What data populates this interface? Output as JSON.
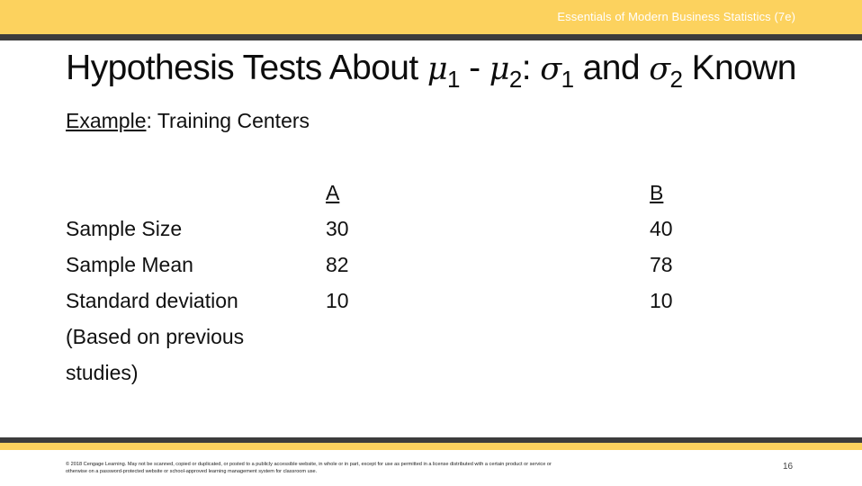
{
  "header": {
    "course_title": "Essentials of Modern Business Statistics (7e)",
    "band_color": "#fcd25e",
    "rule_color": "#3c3c3c"
  },
  "slide": {
    "title_text": "Hypothesis Tests About ",
    "title_mu": "μ",
    "title_sub1": "1",
    "title_minus": " - ",
    "title_sub2": "2",
    "title_colon": ":  ",
    "title_sigma": "σ",
    "title_and": " and ",
    "title_known": " Known",
    "example_label": "Example",
    "example_colon": ": ",
    "example_text": "Training Centers"
  },
  "table": {
    "row_labels": [
      "Sample Size",
      "Sample Mean",
      "Standard deviation",
      "(Based on previous",
      "studies)"
    ],
    "columns": [
      {
        "header": "A",
        "values": [
          "30",
          "82",
          "10"
        ]
      },
      {
        "header": "B",
        "values": [
          "40",
          "78",
          "10"
        ]
      }
    ]
  },
  "footer": {
    "copyright_line1": "© 2018 Cengage Learning. May not be scanned, copied or duplicated, or posted to a publicly accessible website, in whole or in part, except for use as permitted in a license distributed with a certain product or service or",
    "copyright_line2": "otherwise on a password-protected website or school-approved learning management system for classroom use.",
    "page_number": "16"
  }
}
